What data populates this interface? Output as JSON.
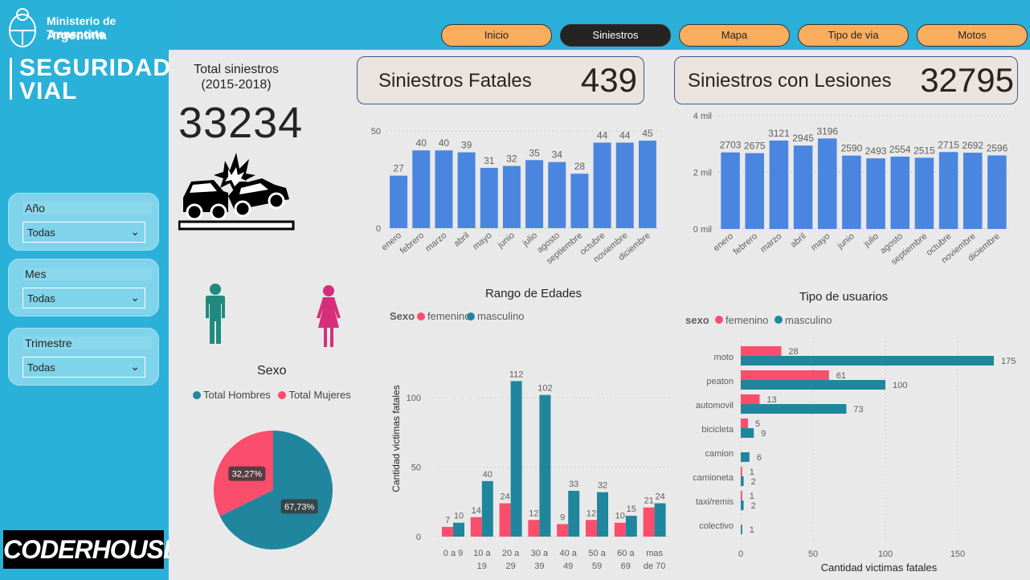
{
  "logo": {
    "ministry_line1": "Ministerio de Transporte",
    "ministry_line2": "Argentina",
    "brand_line1": "SEGURIDAD",
    "brand_line2": "VIAL"
  },
  "tabs": [
    {
      "label": "Inicio",
      "active": false
    },
    {
      "label": "Siniestros",
      "active": true
    },
    {
      "label": "Mapa",
      "active": false
    },
    {
      "label": "Tipo de via",
      "active": false
    },
    {
      "label": "Motos",
      "active": false
    }
  ],
  "filters": [
    {
      "label": "Año",
      "value": "Todas"
    },
    {
      "label": "Mes",
      "value": "Todas"
    },
    {
      "label": "Trimestre",
      "value": "Todas"
    }
  ],
  "footer_logo": "CODERHOUSE",
  "total": {
    "title_line1": "Total siniestros",
    "title_line2": "(2015-2018)",
    "value": "33234"
  },
  "kpis": {
    "fatal_label": "Siniestros Fatales",
    "fatal_value": "439",
    "injury_label": "Siniestros con Lesiones",
    "injury_value": "32795"
  },
  "colors": {
    "bar_blue": "#4a86e0",
    "teal": "#20869e",
    "pink": "#fb4d6c",
    "tab_orange": "#f9ad5f"
  },
  "chart_data": [
    {
      "id": "fatales_por_mes",
      "type": "bar",
      "categories": [
        "enero",
        "febrero",
        "marzo",
        "abril",
        "mayo",
        "junio",
        "julio",
        "agosto",
        "septiembre",
        "octubre",
        "noviembre",
        "diciembre"
      ],
      "values": [
        27,
        40,
        40,
        39,
        31,
        32,
        35,
        34,
        28,
        44,
        44,
        45
      ],
      "yticks": [
        "0",
        "50"
      ],
      "ylim": [
        0,
        50
      ],
      "grid": true
    },
    {
      "id": "lesiones_por_mes",
      "type": "bar",
      "categories": [
        "enero",
        "febrero",
        "marzo",
        "abril",
        "mayo",
        "junio",
        "julio",
        "agosto",
        "septiembre",
        "octubre",
        "noviembre",
        "diciembre"
      ],
      "values": [
        2703,
        2675,
        3121,
        2945,
        3196,
        2590,
        2493,
        2554,
        2515,
        2715,
        2692,
        2596
      ],
      "yticks": [
        "0 mil",
        "2 mil",
        "4 mil"
      ],
      "ylim": [
        0,
        4000
      ],
      "grid": true
    },
    {
      "id": "sexo",
      "type": "pie",
      "title": "Sexo",
      "slices": [
        {
          "name": "Total Hombres",
          "value": 67.73,
          "label": "67,73%"
        },
        {
          "name": "Total Mujeres",
          "value": 32.27,
          "label": "32,27%"
        }
      ],
      "legend": "top"
    },
    {
      "id": "rango_edades",
      "type": "bar",
      "title": "Rango de Edades",
      "legend_title": "Sexo",
      "categories": [
        "0 a 9",
        "10 a 19",
        "20 a 29",
        "30 a 39",
        "40 a 49",
        "50 a 59",
        "60 a 69",
        "mas de 70"
      ],
      "category_lines": [
        [
          "0 a 9"
        ],
        [
          "10 a",
          "19"
        ],
        [
          "20 a",
          "29"
        ],
        [
          "30 a",
          "39"
        ],
        [
          "40 a",
          "49"
        ],
        [
          "50 a",
          "59"
        ],
        [
          "60 a",
          "69"
        ],
        [
          "mas",
          "de 70"
        ]
      ],
      "series": [
        {
          "name": "femenino",
          "values": [
            7,
            14,
            24,
            12,
            9,
            12,
            10,
            21
          ]
        },
        {
          "name": "masculino",
          "values": [
            10,
            40,
            112,
            102,
            33,
            32,
            15,
            24
          ]
        }
      ],
      "ylabel": "Cantidad victimas fatales",
      "yticks": [
        "0",
        "50",
        "100"
      ],
      "ylim": [
        0,
        118
      ],
      "grid": true
    },
    {
      "id": "tipo_usuarios",
      "type": "bar",
      "orientation": "horizontal",
      "title": "Tipo de usuarios",
      "legend_title": "sexo",
      "categories": [
        "moto",
        "peaton",
        "automovil",
        "bicicleta",
        "camion",
        "camioneta",
        "taxi/remis",
        "colectivo"
      ],
      "series": [
        {
          "name": "femenino",
          "values": [
            28,
            61,
            13,
            5,
            null,
            1,
            1,
            null
          ]
        },
        {
          "name": "masculino",
          "values": [
            175,
            100,
            73,
            9,
            6,
            2,
            2,
            1
          ]
        }
      ],
      "xlabel": "Cantidad victimas fatales",
      "xticks": [
        "0",
        "50",
        "100",
        "150"
      ],
      "xlim": [
        0,
        175
      ],
      "grid": true
    }
  ]
}
